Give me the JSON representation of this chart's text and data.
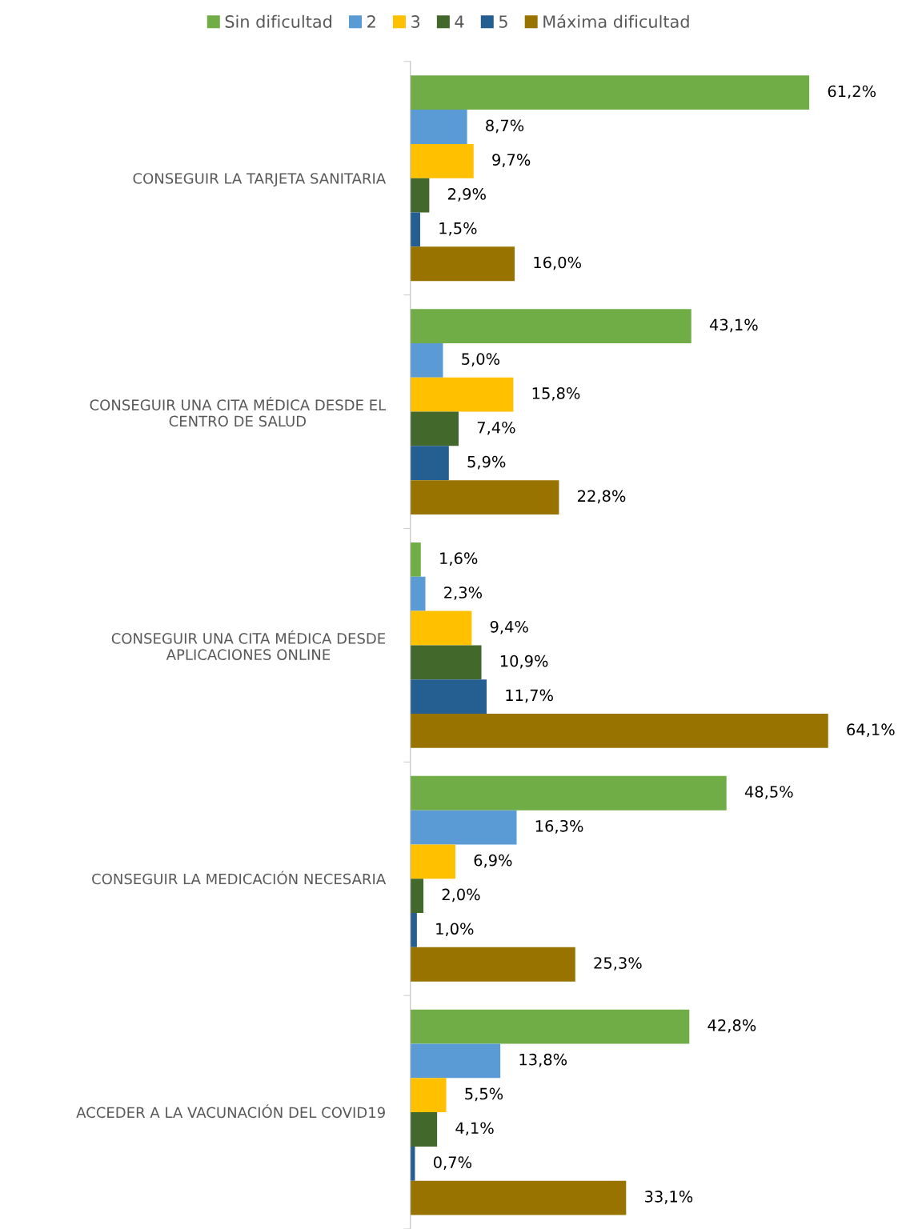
{
  "chart_data": {
    "type": "bar",
    "orientation": "horizontal",
    "categories": [
      "CONSEGUIR LA TARJETA SANITARIA",
      "CONSEGUIR UNA CITA MÉDICA DESDE EL\nCENTRO DE SALUD",
      "CONSEGUIR UNA CITA MÉDICA DESDE\nAPLICACIONES ONLINE",
      "CONSEGUIR LA MEDICACIÓN NECESARIA",
      "ACCEDER A LA VACUNACIÓN DEL COVID19"
    ],
    "series": [
      {
        "name": "Sin dificultad",
        "color": "#70ad47",
        "values": [
          61.2,
          43.1,
          1.6,
          48.5,
          42.8
        ],
        "value_labels": [
          "61,2%",
          "43,1%",
          "1,6%",
          "48,5%",
          "42,8%"
        ]
      },
      {
        "name": "2",
        "color": "#5b9bd5",
        "values": [
          8.7,
          5.0,
          2.3,
          16.3,
          13.8
        ],
        "value_labels": [
          "8,7%",
          "5,0%",
          "2,3%",
          "16,3%",
          "13,8%"
        ]
      },
      {
        "name": "3",
        "color": "#ffc000",
        "values": [
          9.7,
          15.8,
          9.4,
          6.9,
          5.5
        ],
        "value_labels": [
          "9,7%",
          "15,8%",
          "9,4%",
          "6,9%",
          "5,5%"
        ]
      },
      {
        "name": "4",
        "color": "#43682b",
        "values": [
          2.9,
          7.4,
          10.9,
          2.0,
          4.1
        ],
        "value_labels": [
          "2,9%",
          "7,4%",
          "10,9%",
          "2,0%",
          "4,1%"
        ]
      },
      {
        "name": "5",
        "color": "#255e91",
        "values": [
          1.5,
          5.9,
          11.7,
          1.0,
          0.7
        ],
        "value_labels": [
          "1,5%",
          "5,9%",
          "11,7%",
          "1,0%",
          "0,7%"
        ]
      },
      {
        "name": "Máxima dificultad",
        "color": "#997300",
        "values": [
          16.0,
          22.8,
          64.1,
          25.3,
          33.1
        ],
        "value_labels": [
          "16,0%",
          "22,8%",
          "64,1%",
          "25,3%",
          "33,1%"
        ]
      }
    ],
    "tick_labels": "y",
    "grid": false,
    "legend": "top"
  }
}
